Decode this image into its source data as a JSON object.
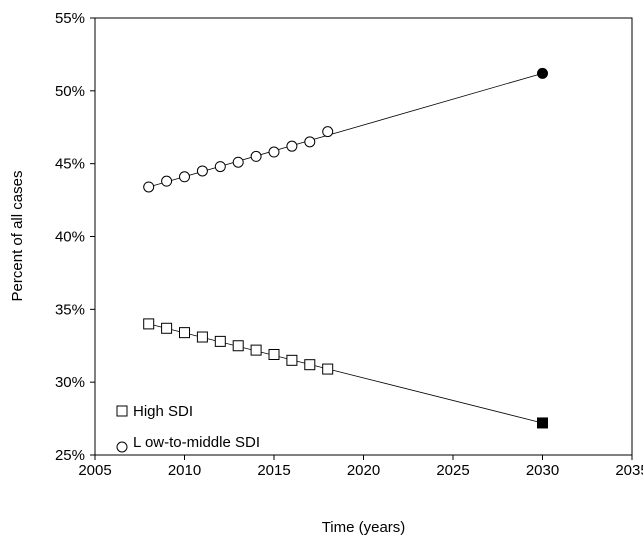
{
  "chart_data": {
    "type": "scatter",
    "title": "",
    "xlabel": "Time (years)",
    "ylabel": "Percent of all cases",
    "xlim": [
      2005,
      2035
    ],
    "ylim": [
      25,
      55
    ],
    "x_ticks": [
      2005,
      2010,
      2015,
      2020,
      2025,
      2030,
      2035
    ],
    "x_tick_labels": [
      "2005",
      "2010",
      "2015",
      "2020",
      "2025",
      "2030",
      "2035"
    ],
    "y_ticks": [
      25,
      30,
      35,
      40,
      45,
      50,
      55
    ],
    "y_tick_labels": [
      "25%",
      "30%",
      "35%",
      "40%",
      "45%",
      "50%",
      "55%"
    ],
    "grid": false,
    "legend_position": "bottom-left",
    "series": [
      {
        "name": "High SDI",
        "marker": "square",
        "x": [
          2008,
          2009,
          2010,
          2011,
          2012,
          2013,
          2014,
          2015,
          2016,
          2017,
          2018
        ],
        "values": [
          34.0,
          33.7,
          33.4,
          33.1,
          32.8,
          32.5,
          32.2,
          31.9,
          31.5,
          31.2,
          30.9
        ],
        "projection": {
          "x": 2030,
          "value": 27.2
        },
        "trend_line": true
      },
      {
        "name": "L ow-to-middle SDI",
        "marker": "circle",
        "x": [
          2008,
          2009,
          2010,
          2011,
          2012,
          2013,
          2014,
          2015,
          2016,
          2017,
          2018
        ],
        "values": [
          43.4,
          43.8,
          44.1,
          44.5,
          44.8,
          45.1,
          45.5,
          45.8,
          46.2,
          46.5,
          47.2
        ],
        "projection": {
          "x": 2030,
          "value": 51.2
        },
        "trend_line": true
      }
    ]
  }
}
